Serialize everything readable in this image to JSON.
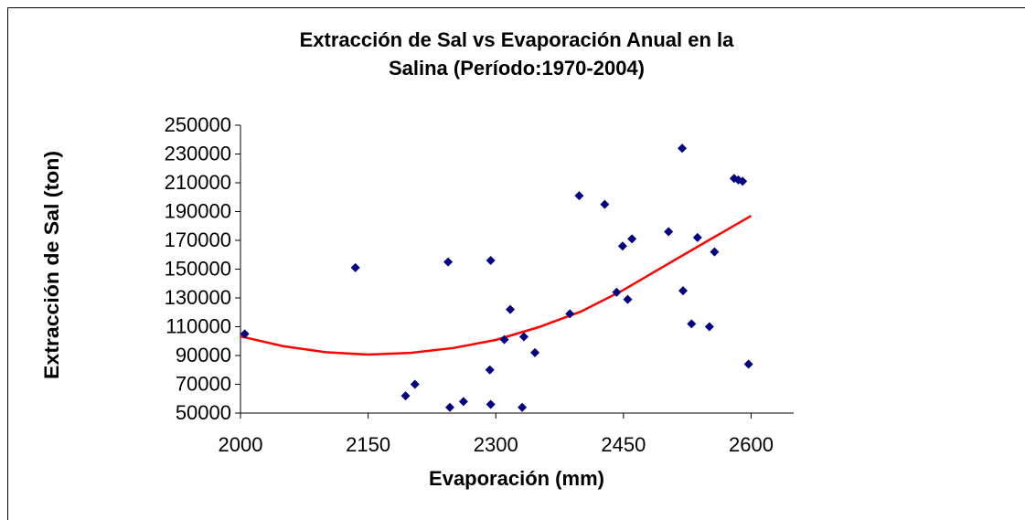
{
  "chart_data": {
    "type": "scatter",
    "title": [
      "Extracción de Sal vs Evaporación Anual en la",
      "Salina (Período:1970-2004)"
    ],
    "x_label": "Evaporación (mm)",
    "y_label": "Extracción de Sal (ton)",
    "color": "#000080",
    "x": [
      2005,
      2135,
      2194,
      2205,
      2244,
      2246,
      2262,
      2293,
      2294,
      2294,
      2310,
      2317,
      2331,
      2333,
      2346,
      2387,
      2398,
      2428,
      2442,
      2449,
      2455,
      2460,
      2503,
      2519,
      2520,
      2530,
      2537,
      2551,
      2557,
      2580,
      2585,
      2590,
      2597
    ],
    "values": [
      105000,
      151000,
      62000,
      70000,
      155000,
      54000,
      58000,
      80000,
      156000,
      56000,
      101000,
      122000,
      54000,
      103000,
      92000,
      119000,
      201000,
      195000,
      134000,
      166000,
      129000,
      171000,
      176000,
      234000,
      135000,
      112000,
      172000,
      110000,
      162000,
      213000,
      212000,
      211000,
      84000
    ],
    "trendline": {
      "color": "#ff0000",
      "x": [
        2000,
        2050,
        2100,
        2150,
        2200,
        2250,
        2300,
        2350,
        2400,
        2450,
        2500,
        2550,
        2600
      ],
      "values": [
        103300,
        96500,
        92300,
        90600,
        91800,
        95200,
        100800,
        109600,
        120500,
        135500,
        152800,
        170000,
        187000
      ]
    },
    "xlim": [
      2000,
      2650
    ],
    "xticks": [
      2000,
      2150,
      2300,
      2450,
      2600
    ],
    "ylim": [
      50000,
      250000
    ],
    "yticks": [
      50000,
      70000,
      90000,
      110000,
      130000,
      150000,
      170000,
      190000,
      210000,
      230000,
      250000
    ]
  }
}
